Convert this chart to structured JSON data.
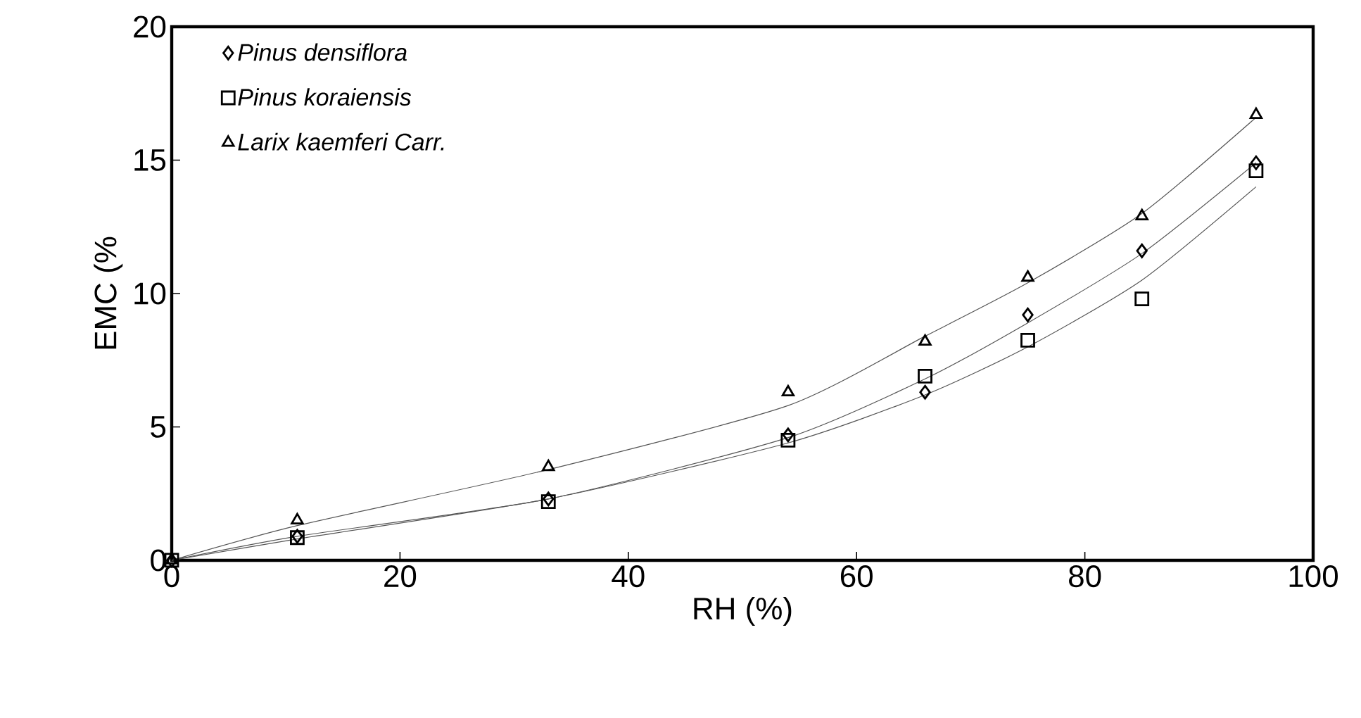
{
  "chart_data": {
    "type": "scatter",
    "xlabel": "RH (%)",
    "ylabel": "EMC (%",
    "x": [
      0,
      11,
      33,
      54,
      66,
      75,
      85,
      95
    ],
    "series": [
      {
        "name": "Pinus densiflora",
        "color": "#000000",
        "marker": "diamond",
        "values": [
          0,
          0.9,
          2.3,
          4.7,
          6.3,
          9.2,
          11.6,
          14.9
        ]
      },
      {
        "name": "Pinus koraiensis",
        "color": "#000000",
        "marker": "square",
        "values": [
          0,
          0.85,
          2.2,
          4.5,
          6.9,
          8.25,
          9.8,
          14.6
        ]
      },
      {
        "name": "Larix kaemferi Carr.",
        "color": "#000000",
        "marker": "triangle",
        "values": [
          0,
          1.5,
          3.5,
          6.3,
          8.2,
          10.6,
          12.9,
          16.7
        ]
      },
      {
        "type": "line",
        "color": "#555555",
        "marker": "none",
        "x": [
          0,
          11,
          33,
          54,
          66,
          75,
          85,
          95
        ],
        "values": [
          0,
          0.9,
          2.3,
          4.6,
          6.8,
          8.9,
          11.5,
          14.9
        ]
      },
      {
        "type": "line",
        "color": "#555555",
        "marker": "none",
        "x": [
          0,
          11,
          33,
          54,
          66,
          75,
          85,
          95
        ],
        "values": [
          0,
          0.8,
          2.3,
          4.4,
          6.2,
          8.0,
          10.5,
          14.0
        ]
      },
      {
        "type": "line",
        "color": "#555555",
        "marker": "none",
        "x": [
          0,
          11,
          33,
          54,
          66,
          75,
          85,
          95
        ],
        "values": [
          0,
          1.3,
          3.4,
          5.8,
          8.4,
          10.4,
          13.0,
          16.6
        ]
      }
    ],
    "xlim": [
      0,
      100
    ],
    "xticks": [
      0,
      20,
      40,
      60,
      80,
      100
    ],
    "ylim": [
      0,
      20
    ],
    "yticks": [
      0,
      5,
      10,
      15,
      20
    ],
    "grid": false,
    "legend": "top left"
  }
}
